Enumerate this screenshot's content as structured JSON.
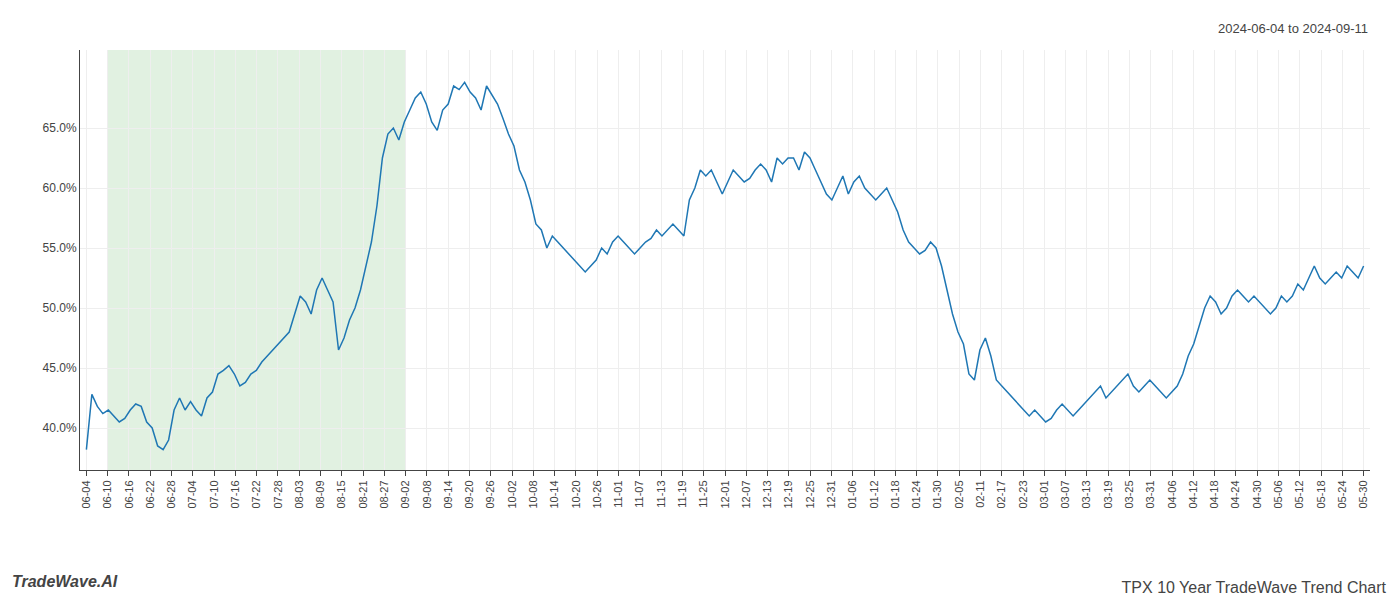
{
  "chart_data": {
    "type": "line",
    "title": "TPX 10 Year TradeWave Trend Chart",
    "subtitle": "2024-06-04 to 2024-09-11",
    "annotations": [
      "TradeWave.AI"
    ],
    "color": "#1f77b4",
    "grid": true,
    "shaded_span": {
      "x_start": 1,
      "x_end": 15,
      "color": "#c8e6c8"
    },
    "xlim": [
      -0.3,
      60.3
    ],
    "xticks": [
      {
        "value": 0,
        "label": "06-04"
      },
      {
        "value": 1,
        "label": "06-10"
      },
      {
        "value": 2,
        "label": "06-16"
      },
      {
        "value": 3,
        "label": "06-22"
      },
      {
        "value": 4,
        "label": "06-28"
      },
      {
        "value": 5,
        "label": "07-04"
      },
      {
        "value": 6,
        "label": "07-10"
      },
      {
        "value": 7,
        "label": "07-16"
      },
      {
        "value": 8,
        "label": "07-22"
      },
      {
        "value": 9,
        "label": "07-28"
      },
      {
        "value": 10,
        "label": "08-03"
      },
      {
        "value": 11,
        "label": "08-09"
      },
      {
        "value": 12,
        "label": "08-15"
      },
      {
        "value": 13,
        "label": "08-21"
      },
      {
        "value": 14,
        "label": "08-27"
      },
      {
        "value": 15,
        "label": "09-02"
      },
      {
        "value": 16,
        "label": "09-08"
      },
      {
        "value": 17,
        "label": "09-14"
      },
      {
        "value": 18,
        "label": "09-20"
      },
      {
        "value": 19,
        "label": "09-26"
      },
      {
        "value": 20,
        "label": "10-02"
      },
      {
        "value": 21,
        "label": "10-08"
      },
      {
        "value": 22,
        "label": "10-14"
      },
      {
        "value": 23,
        "label": "10-20"
      },
      {
        "value": 24,
        "label": "10-26"
      },
      {
        "value": 25,
        "label": "11-01"
      },
      {
        "value": 26,
        "label": "11-07"
      },
      {
        "value": 27,
        "label": "11-13"
      },
      {
        "value": 28,
        "label": "11-19"
      },
      {
        "value": 29,
        "label": "11-25"
      },
      {
        "value": 30,
        "label": "12-01"
      },
      {
        "value": 31,
        "label": "12-07"
      },
      {
        "value": 32,
        "label": "12-13"
      },
      {
        "value": 33,
        "label": "12-19"
      },
      {
        "value": 34,
        "label": "12-25"
      },
      {
        "value": 35,
        "label": "12-31"
      },
      {
        "value": 36,
        "label": "01-06"
      },
      {
        "value": 37,
        "label": "01-12"
      },
      {
        "value": 38,
        "label": "01-18"
      },
      {
        "value": 39,
        "label": "01-24"
      },
      {
        "value": 40,
        "label": "01-30"
      },
      {
        "value": 41,
        "label": "02-05"
      },
      {
        "value": 42,
        "label": "02-11"
      },
      {
        "value": 43,
        "label": "02-17"
      },
      {
        "value": 44,
        "label": "02-23"
      },
      {
        "value": 45,
        "label": "03-01"
      },
      {
        "value": 46,
        "label": "03-07"
      },
      {
        "value": 47,
        "label": "03-13"
      },
      {
        "value": 48,
        "label": "03-19"
      },
      {
        "value": 49,
        "label": "03-25"
      },
      {
        "value": 50,
        "label": "03-31"
      },
      {
        "value": 51,
        "label": "04-06"
      },
      {
        "value": 52,
        "label": "04-12"
      },
      {
        "value": 53,
        "label": "04-18"
      },
      {
        "value": 54,
        "label": "04-24"
      },
      {
        "value": 55,
        "label": "04-30"
      },
      {
        "value": 56,
        "label": "05-06"
      },
      {
        "value": 57,
        "label": "05-12"
      },
      {
        "value": 58,
        "label": "05-18"
      },
      {
        "value": 59,
        "label": "05-24"
      },
      {
        "value": 60,
        "label": "05-30"
      }
    ],
    "ylim": [
      36.5,
      71.5
    ],
    "yticks": [
      {
        "value": 40.0,
        "label": "40.0%"
      },
      {
        "value": 45.0,
        "label": "45.0%"
      },
      {
        "value": 50.0,
        "label": "50.0%"
      },
      {
        "value": 55.0,
        "label": "55.0%"
      },
      {
        "value": 60.0,
        "label": "60.0%"
      },
      {
        "value": 65.0,
        "label": "65.0%"
      }
    ],
    "x": [
      0,
      0.2575,
      0.515,
      0.7725,
      1.03,
      1.2876,
      1.5451,
      1.8026,
      2.0601,
      2.3176,
      2.5751,
      2.8326,
      3.0901,
      3.3476,
      3.6052,
      3.8627,
      4.1202,
      4.3777,
      4.6352,
      4.8927,
      5.1502,
      5.4077,
      5.6652,
      5.9227,
      6.1803,
      6.4378,
      6.6953,
      6.9528,
      7.2103,
      7.4678,
      7.7253,
      7.9828,
      8.2403,
      8.4979,
      8.7554,
      9.0129,
      9.2704,
      9.5279,
      9.7854,
      10.0429,
      10.3004,
      10.5579,
      10.8155,
      11.073,
      11.3305,
      11.588,
      11.8455,
      12.103,
      12.3605,
      12.618,
      12.8755,
      13.133,
      13.3906,
      13.6481,
      13.9056,
      14.1631,
      14.4206,
      14.6781,
      14.9356,
      15.1931,
      15.4506,
      15.7082,
      15.9657,
      16.2232,
      16.4807,
      16.7382,
      16.9957,
      17.2532,
      17.5107,
      17.7682,
      18.0258,
      18.2833,
      18.5408,
      18.7983,
      19.0558,
      19.3133,
      19.5708,
      19.8283,
      20.0858,
      20.3433,
      20.6009,
      20.8584,
      21.1159,
      21.3734,
      21.6309,
      21.8884,
      22.1459,
      22.4034,
      22.6609,
      22.9185,
      23.176,
      23.4335,
      23.691,
      23.9485,
      24.206,
      24.4635,
      24.721,
      24.9785,
      25.2361,
      25.4936,
      25.7511,
      26.0086,
      26.2661,
      26.5236,
      26.7811,
      27.0386,
      27.2961,
      27.5536,
      27.8112,
      28.0687,
      28.3262,
      28.5837,
      28.8412,
      29.0987,
      29.3562,
      29.6137,
      29.8712,
      30.1288,
      30.3863,
      30.6438,
      30.9013,
      31.1588,
      31.4163,
      31.6738,
      31.9313,
      32.1888,
      32.4464,
      32.7039,
      32.9614,
      33.2189,
      33.4764,
      33.7339,
      33.9914,
      34.2489,
      34.5064,
      34.7639,
      35.0215,
      35.279,
      35.5365,
      35.794,
      36.0515,
      36.309,
      36.5665,
      36.824,
      37.0815,
      37.3391,
      37.5966,
      37.8541,
      38.1116,
      38.3691,
      38.6266,
      38.8841,
      39.1416,
      39.3991,
      39.6567,
      39.9142,
      40.1717,
      40.4292,
      40.6867,
      40.9442,
      41.2017,
      41.4592,
      41.7167,
      41.9742,
      42.2318,
      42.4893,
      42.7468,
      43.0043,
      43.2618,
      43.5193,
      43.7768,
      44.0343,
      44.2918,
      44.5494,
      44.8069,
      45.0644,
      45.3219,
      45.5794,
      45.8369,
      46.0944,
      46.3519,
      46.6094,
      46.867,
      47.1245,
      47.382,
      47.6395,
      47.897,
      48.1545,
      48.412,
      48.6695,
      48.927,
      49.1845,
      49.4421,
      49.6996,
      49.9571,
      50.2146,
      50.4721,
      50.7296,
      50.9871,
      51.2446,
      51.5021,
      51.7597,
      52.0172,
      52.2747,
      52.5322,
      52.7897,
      53.0472,
      53.3047,
      53.5622,
      53.8197,
      54.0773,
      54.3348,
      54.5923,
      54.8498,
      55.1073,
      55.3648,
      55.6223,
      55.8798,
      56.1373,
      56.3948,
      56.6524,
      56.9099,
      57.1674,
      57.4249,
      57.6824,
      57.9399,
      58.1974,
      58.4549,
      58.7124,
      58.97,
      59.2275,
      59.485,
      59.7425,
      60
    ],
    "values": [
      38.2,
      42.8,
      41.8,
      41.2,
      41.5,
      41.0,
      40.5,
      40.8,
      41.5,
      42.0,
      41.8,
      40.5,
      40.0,
      38.5,
      38.2,
      39.0,
      41.5,
      42.5,
      41.5,
      42.2,
      41.5,
      41.0,
      42.5,
      43.0,
      44.5,
      44.8,
      45.2,
      44.5,
      43.5,
      43.8,
      44.5,
      44.8,
      45.5,
      46.0,
      46.5,
      47.0,
      47.5,
      48.0,
      49.5,
      51.0,
      50.5,
      49.5,
      51.5,
      52.5,
      51.5,
      50.5,
      46.5,
      47.5,
      49.0,
      50.0,
      51.5,
      53.5,
      55.5,
      58.5,
      62.5,
      64.5,
      65.0,
      64.0,
      65.5,
      66.5,
      67.5,
      68.0,
      67.0,
      65.5,
      64.8,
      66.5,
      67.0,
      68.5,
      68.2,
      68.8,
      68.0,
      67.5,
      66.5,
      68.5,
      67.8,
      67.0,
      65.8,
      64.5,
      63.5,
      61.5,
      60.5,
      59.0,
      57.0,
      56.5,
      55.0,
      56.0,
      55.5,
      55.0,
      54.5,
      54.0,
      53.5,
      53.0,
      53.5,
      54.0,
      55.0,
      54.5,
      55.5,
      56.0,
      55.5,
      55.0,
      54.5,
      55.0,
      55.5,
      55.8,
      56.5,
      56.0,
      56.5,
      57.0,
      56.5,
      56.0,
      59.0,
      60.0,
      61.5,
      61.0,
      61.5,
      60.5,
      59.5,
      60.5,
      61.5,
      61.0,
      60.5,
      60.8,
      61.5,
      62.0,
      61.5,
      60.5,
      62.5,
      62.0,
      62.5,
      62.5,
      61.5,
      63.0,
      62.5,
      61.5,
      60.5,
      59.5,
      59.0,
      60.0,
      61.0,
      59.5,
      60.5,
      61.0,
      60.0,
      59.5,
      59.0,
      59.5,
      60.0,
      59.0,
      58.0,
      56.5,
      55.5,
      55.0,
      54.5,
      54.8,
      55.5,
      55.0,
      53.5,
      51.5,
      49.5,
      48.0,
      47.0,
      44.5,
      44.0,
      46.5,
      47.5,
      46.0,
      44.0,
      43.5,
      43.0,
      42.5,
      42.0,
      41.5,
      41.0,
      41.5,
      41.0,
      40.5,
      40.8,
      41.5,
      42.0,
      41.5,
      41.0,
      41.5,
      42.0,
      42.5,
      43.0,
      43.5,
      42.5,
      43.0,
      43.5,
      44.0,
      44.5,
      43.5,
      43.0,
      43.5,
      44.0,
      43.5,
      43.0,
      42.5,
      43.0,
      43.5,
      44.5,
      46.0,
      47.0,
      48.5,
      50.0,
      51.0,
      50.5,
      49.5,
      50.0,
      51.0,
      51.5,
      51.0,
      50.5,
      51.0,
      50.5,
      50.0,
      49.5,
      50.0,
      51.0,
      50.5,
      51.0,
      52.0,
      51.5,
      52.5,
      53.5,
      52.5,
      52.0,
      52.5,
      53.0,
      52.5,
      53.5,
      53.0,
      52.5,
      53.5
    ]
  }
}
